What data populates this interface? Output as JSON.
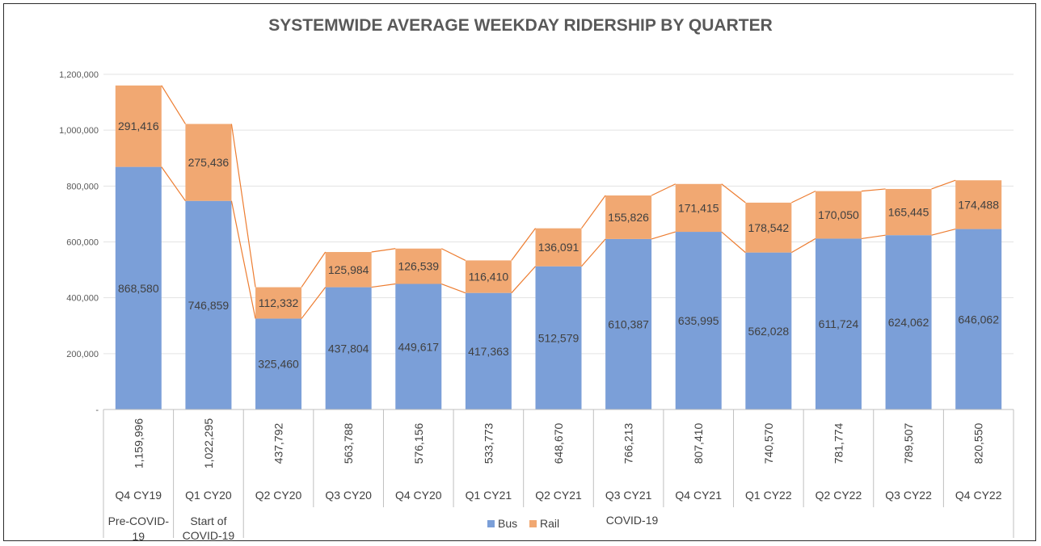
{
  "chart_data": {
    "type": "bar",
    "stacked": true,
    "title": "SYSTEMWIDE AVERAGE WEEKDAY RIDERSHIP BY QUARTER",
    "categories": [
      "Q4 CY19",
      "Q1 CY20",
      "Q2 CY20",
      "Q3 CY20",
      "Q4 CY20",
      "Q1 CY21",
      "Q2 CY21",
      "Q3 CY21",
      "Q4 CY21",
      "Q1 CY22",
      "Q2 CY22",
      "Q3 CY22",
      "Q4 CY22"
    ],
    "series": [
      {
        "name": "Bus",
        "color": "#7b9fd8",
        "values": [
          868580,
          746859,
          325460,
          437804,
          449617,
          417363,
          512579,
          610387,
          635995,
          562028,
          611724,
          624062,
          646062
        ]
      },
      {
        "name": "Rail",
        "color": "#f1a872",
        "values": [
          291416,
          275436,
          112332,
          125984,
          126539,
          116410,
          136091,
          155826,
          171415,
          178542,
          170050,
          165445,
          174488
        ]
      }
    ],
    "series_labels": [
      [
        "868,580",
        "746,859",
        "325,460",
        "437,804",
        "449,617",
        "417,363",
        "512,579",
        "610,387",
        "635,995",
        "562,028",
        "611,724",
        "624,062",
        "646,062"
      ],
      [
        "291,416",
        "275,436",
        "112,332",
        "125,984",
        "126,539",
        "116,410",
        "136,091",
        "155,826",
        "171,415",
        "178,542",
        "170,050",
        "165,445",
        "174,488"
      ]
    ],
    "totals": [
      "1,159,996",
      "1,022,295",
      "437,792",
      "563,788",
      "576,156",
      "533,773",
      "648,670",
      "766,213",
      "807,410",
      "740,570",
      "781,774",
      "789,507",
      "820,550"
    ],
    "groups": [
      {
        "label": "Pre-COVID-19",
        "span": 1
      },
      {
        "label": "Start of COVID-19",
        "span": 1
      },
      {
        "label": "COVID-19",
        "span": 11
      }
    ],
    "yticks": [
      "-",
      "200,000",
      "400,000",
      "600,000",
      "800,000",
      "1,000,000",
      "1,200,000"
    ],
    "ylim": [
      0,
      1200000
    ],
    "connector_color": "#ed7d31",
    "grid": true,
    "legend_position": "bottom"
  }
}
